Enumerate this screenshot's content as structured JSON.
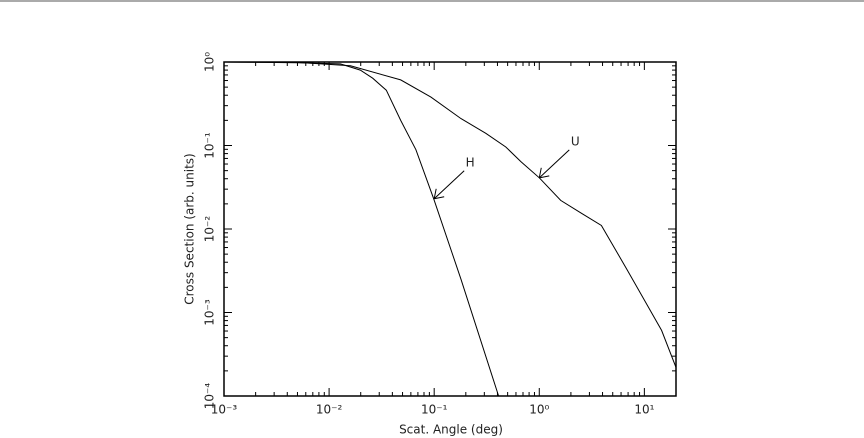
{
  "chart_data": {
    "type": "line",
    "xlabel": "Scat. Angle (deg)",
    "ylabel": "Cross Section (arb. units)",
    "xlog": true,
    "ylog": true,
    "xlim": [
      0.001,
      20
    ],
    "ylim": [
      0.0001,
      1
    ],
    "xticks": [
      {
        "value": 0.001,
        "label": "10⁻³"
      },
      {
        "value": 0.01,
        "label": "10⁻²"
      },
      {
        "value": 0.1,
        "label": "10⁻¹"
      },
      {
        "value": 1,
        "label": "10⁰"
      },
      {
        "value": 10,
        "label": "10¹"
      }
    ],
    "yticks": [
      {
        "value": 0.0001,
        "label": "10⁻⁴"
      },
      {
        "value": 0.001,
        "label": "10⁻³"
      },
      {
        "value": 0.01,
        "label": "10⁻²"
      },
      {
        "value": 0.1,
        "label": "10⁻¹"
      },
      {
        "value": 1,
        "label": "10⁰"
      }
    ],
    "series": [
      {
        "name": "H",
        "color": "#000000",
        "x": [
          0.001,
          0.005,
          0.0128,
          0.0198,
          0.026,
          0.035,
          0.048,
          0.067,
          0.099,
          0.18,
          0.41
        ],
        "values": [
          1,
          0.98,
          0.95,
          0.8,
          0.64,
          0.46,
          0.2,
          0.089,
          0.023,
          0.0025,
          0.0001
        ]
      },
      {
        "name": "U",
        "color": "#000000",
        "x": [
          0.001,
          0.005,
          0.016,
          0.048,
          0.093,
          0.18,
          0.31,
          0.48,
          0.67,
          1.0,
          1.6,
          2.5,
          3.9,
          6.8,
          14.6,
          20
        ],
        "values": [
          1,
          0.99,
          0.9,
          0.61,
          0.38,
          0.21,
          0.14,
          0.096,
          0.064,
          0.041,
          0.022,
          0.0155,
          0.011,
          0.0033,
          0.00061,
          0.00022
        ]
      }
    ],
    "annotations": [
      {
        "text": "H",
        "x": 0.1,
        "y": 0.023
      },
      {
        "text": "U",
        "x": 1.0,
        "y": 0.041
      }
    ]
  }
}
